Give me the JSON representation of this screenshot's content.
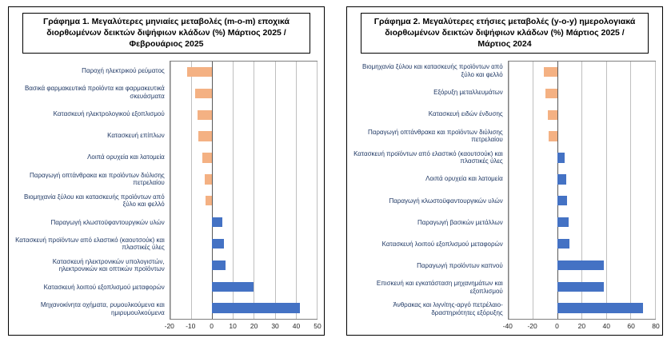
{
  "page": {
    "background": "#FFFFFF"
  },
  "chart_data": [
    {
      "type": "bar",
      "orientation": "horizontal",
      "title": "Γράφημα 1. Μεγαλύτερες μηνιαίες μεταβολές (m-o-m) εποχικά διορθωμένων δεικτών διψήφιων κλάδων (%) Μάρτιος 2025 / Φεβρουάριος 2025",
      "categories": [
        "Παροχή ηλεκτρικού ρεύματος",
        "Βασικά φαρμακευτικά προϊόντα και φαρμακευτικά σκευάσματα",
        "Κατασκευή ηλεκτρολογικού εξοπλισμού",
        "Κατασκευή επίπλων",
        "Λοιπά ορυχεία και λατομεία",
        "Παραγωγή οπτάνθρακα και προϊόντων διύλισης πετρελαίου",
        "Βιομηχανία ξύλου και κατασκευής προϊόντων από ξύλο και φελλό",
        "Παραγωγή κλωστοϋφαντουργικών υλών",
        "Κατασκευή προϊόντων από ελαστικό (καουτσούκ) και πλαστικές ύλες",
        "Κατασκευή ηλεκτρονικών υπολογιστών, ηλεκτρονικών και οπτικών προϊόντων",
        "Κατασκευή λοιπού εξοπλισμού μεταφορών",
        "Μηχανοκίνητα οχήματα, ρυμουλκούμενα και ημιρυμουλκούμενα"
      ],
      "values": [
        -12,
        -8,
        -7,
        -6.5,
        -4.5,
        -3.5,
        -3,
        5,
        5.5,
        6.5,
        20,
        42
      ],
      "xlim": [
        -20,
        50
      ],
      "xticks": [
        -20,
        -10,
        0,
        10,
        20,
        30,
        40,
        50
      ],
      "colors": {
        "positive": "#4472C4",
        "negative": "#F4B183"
      },
      "grid": true,
      "legend": false,
      "xlabel": "",
      "ylabel": ""
    },
    {
      "type": "bar",
      "orientation": "horizontal",
      "title": "Γράφημα 2. Μεγαλύτερες ετήσιες μεταβολές (y-o-y) ημερολογιακά διορθωμένων δεικτών διψήφιων κλάδων (%) Μάρτιος 2025 / Μάρτιος  2024",
      "categories": [
        "Βιομηχανία ξύλου και κατασκευής προϊόντων από ξύλο και φελλό",
        "Εξόρυξη μεταλλευμάτων",
        "Κατασκευή ειδών ένδυσης",
        "Παραγωγή οπτάνθρακα και προϊόντων διύλισης πετρελαίου",
        "Κατασκευή προϊόντων από ελαστικό (καουτσούκ) και πλαστικές ύλες",
        "Λοιπά ορυχεία και λατομεία",
        "Παραγωγή κλωστοϋφαντουργικών υλών",
        "Παραγωγή βασικών μετάλλων",
        "Κατασκευή λοιπού εξοπλισμού μεταφορών",
        "Παραγωγή προϊόντων καπνού",
        "Επισκευή και εγκατάσταση μηχανημάτων και εξοπλισμού",
        "Άνθρακας και λιγνίτης-αργό πετρέλαιο-δραστηριότητες εξόρυξης"
      ],
      "values": [
        -11,
        -10,
        -8,
        -7,
        6,
        7,
        8,
        9,
        10,
        38,
        38,
        70
      ],
      "xlim": [
        -40,
        80
      ],
      "xticks": [
        -40,
        -20,
        0,
        20,
        40,
        60,
        80
      ],
      "colors": {
        "positive": "#4472C4",
        "negative": "#F4B183"
      },
      "grid": true,
      "legend": false,
      "xlabel": "",
      "ylabel": ""
    }
  ]
}
